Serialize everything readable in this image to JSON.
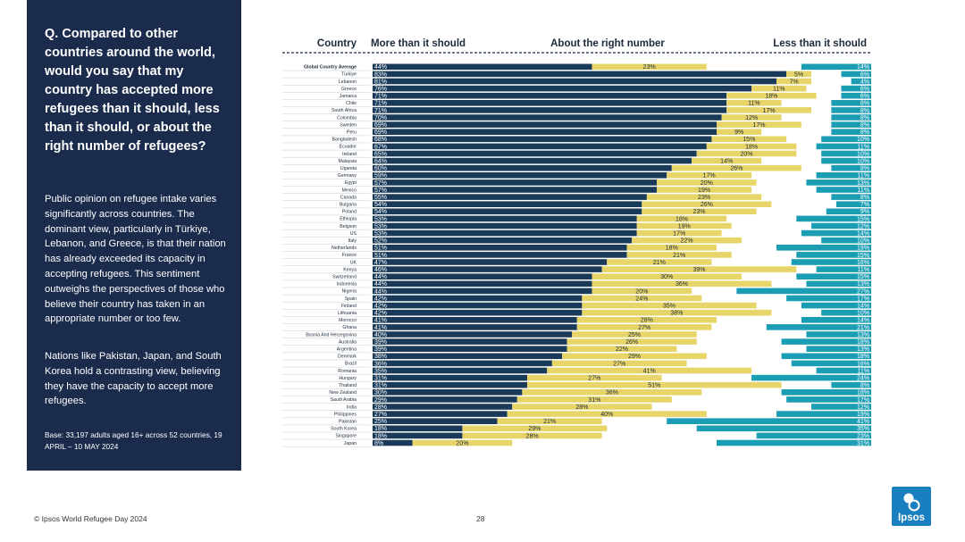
{
  "panel": {
    "question": "Q. Compared to other countries around the world, would you say that my country has accepted more refugees than it should, less than it should, or about the right number of refugees?",
    "paragraph1": "Public opinion on refugee intake varies significantly across countries. The dominant view, particularly in Türkiye, Lebanon, and Greece, is that their nation has already exceeded its capacity in accepting refugees. This sentiment outweighs the perspectives of those who believe their country has taken in an appropriate number or too few.",
    "paragraph2": "Nations like Pakistan, Japan, and South Korea hold a contrasting view, believing they have the capacity to accept more refugees.",
    "base": "Base: 33,197 adults aged 16+ across 52 countries, 19 APRIL – 10 MAY 2024"
  },
  "footer": {
    "source": "© Ipsos World Refugee Day 2024",
    "page_number": "28",
    "logo_text": "Ipsos"
  },
  "colors": {
    "more": "#1a3a5a",
    "right": "#e8d56a",
    "less": "#1b9db4",
    "panel": "#1a2b4c",
    "logo": "#1a7fbf"
  },
  "chart_data": {
    "type": "bar",
    "stacked": true,
    "orientation": "horizontal",
    "unit": "%",
    "headers": {
      "country": "Country",
      "more": "More than it should",
      "right": "About the right number",
      "less": "Less than it should"
    },
    "categories": [
      "Global Country Average",
      "Türkiye",
      "Lebanon",
      "Greece",
      "Jamaica",
      "Chile",
      "South Africa",
      "Colombia",
      "Sweden",
      "Peru",
      "Bangladesh",
      "Ecuador",
      "Ireland",
      "Malaysia",
      "Uganda",
      "Germany",
      "Egypt",
      "Mexico",
      "Canada",
      "Bulgaria",
      "Poland",
      "Ethiopia",
      "Belgium",
      "US",
      "Italy",
      "Netherlands",
      "France",
      "UK",
      "Kenya",
      "Switzerland",
      "Indonesia",
      "Nigeria",
      "Spain",
      "Finland",
      "Lithuania",
      "Morocco",
      "Ghana",
      "Bosnia And Herzegovina",
      "Australia",
      "Argentina",
      "Denmark",
      "Brazil",
      "Romania",
      "Hungary",
      "Thailand",
      "New Zealand",
      "Saudi Arabia",
      "India",
      "Philippines",
      "Pakistan",
      "South Korea",
      "Singapore",
      "Japan"
    ],
    "series": [
      {
        "name": "More than it should",
        "values": [
          44,
          83,
          81,
          76,
          71,
          71,
          71,
          70,
          69,
          69,
          68,
          67,
          65,
          64,
          60,
          59,
          57,
          57,
          55,
          54,
          54,
          53,
          53,
          53,
          52,
          51,
          51,
          47,
          46,
          44,
          44,
          44,
          42,
          42,
          42,
          41,
          41,
          40,
          39,
          39,
          38,
          36,
          35,
          31,
          31,
          30,
          29,
          28,
          27,
          25,
          18,
          18,
          8
        ]
      },
      {
        "name": "About the right number",
        "values": [
          23,
          5,
          7,
          11,
          18,
          11,
          17,
          12,
          17,
          9,
          15,
          18,
          20,
          14,
          26,
          17,
          20,
          19,
          23,
          26,
          23,
          18,
          19,
          17,
          22,
          18,
          21,
          21,
          39,
          30,
          36,
          20,
          24,
          35,
          38,
          28,
          27,
          25,
          26,
          22,
          29,
          27,
          41,
          27,
          51,
          36,
          31,
          28,
          40,
          21,
          29,
          28,
          20
        ]
      },
      {
        "name": "Less than it should",
        "values": [
          14,
          6,
          4,
          6,
          6,
          8,
          8,
          8,
          8,
          8,
          10,
          11,
          10,
          10,
          8,
          11,
          13,
          11,
          8,
          7,
          9,
          15,
          12,
          14,
          10,
          19,
          15,
          16,
          11,
          15,
          13,
          27,
          17,
          14,
          10,
          14,
          21,
          13,
          18,
          13,
          18,
          16,
          11,
          24,
          8,
          18,
          17,
          12,
          19,
          41,
          35,
          23,
          31
        ]
      }
    ],
    "xlim": [
      0,
      100
    ]
  }
}
